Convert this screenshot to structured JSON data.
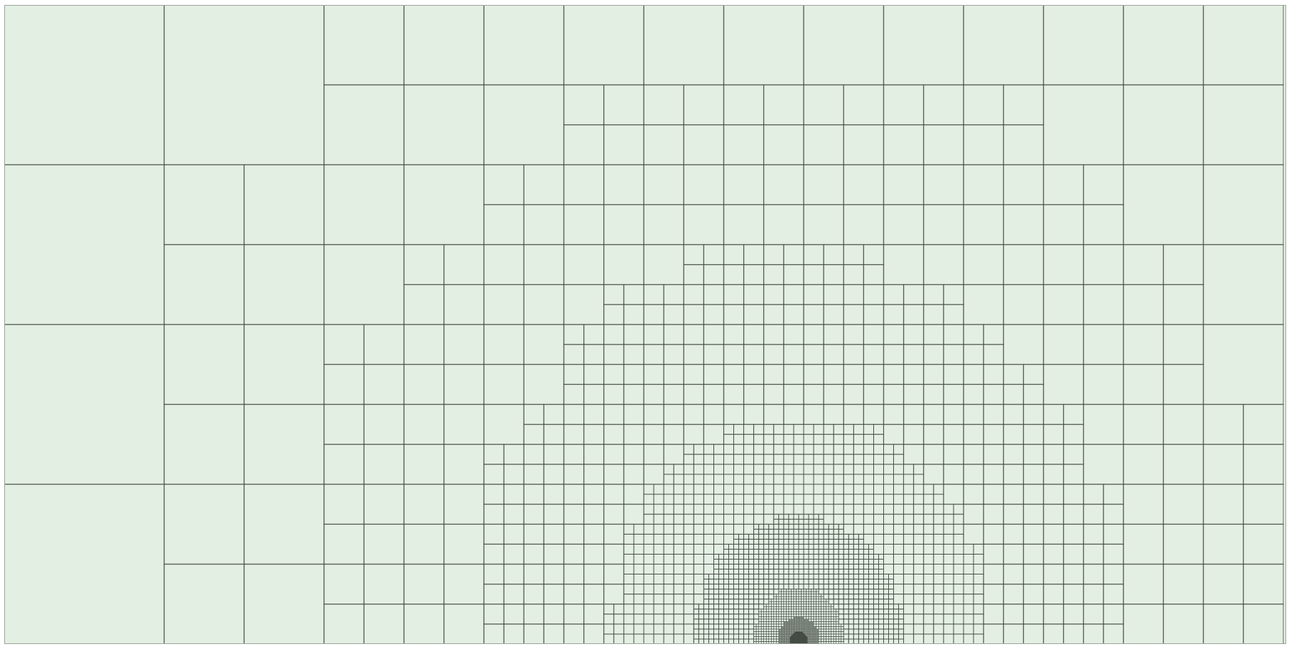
{
  "figure": {
    "type": "adaptive-quadtree-mesh",
    "cell_fill_color": "#e4efe4",
    "line_color": "#3f463f",
    "border_color": "#9aa49a",
    "refinement_focus": "bottom-center",
    "text_labels": []
  }
}
